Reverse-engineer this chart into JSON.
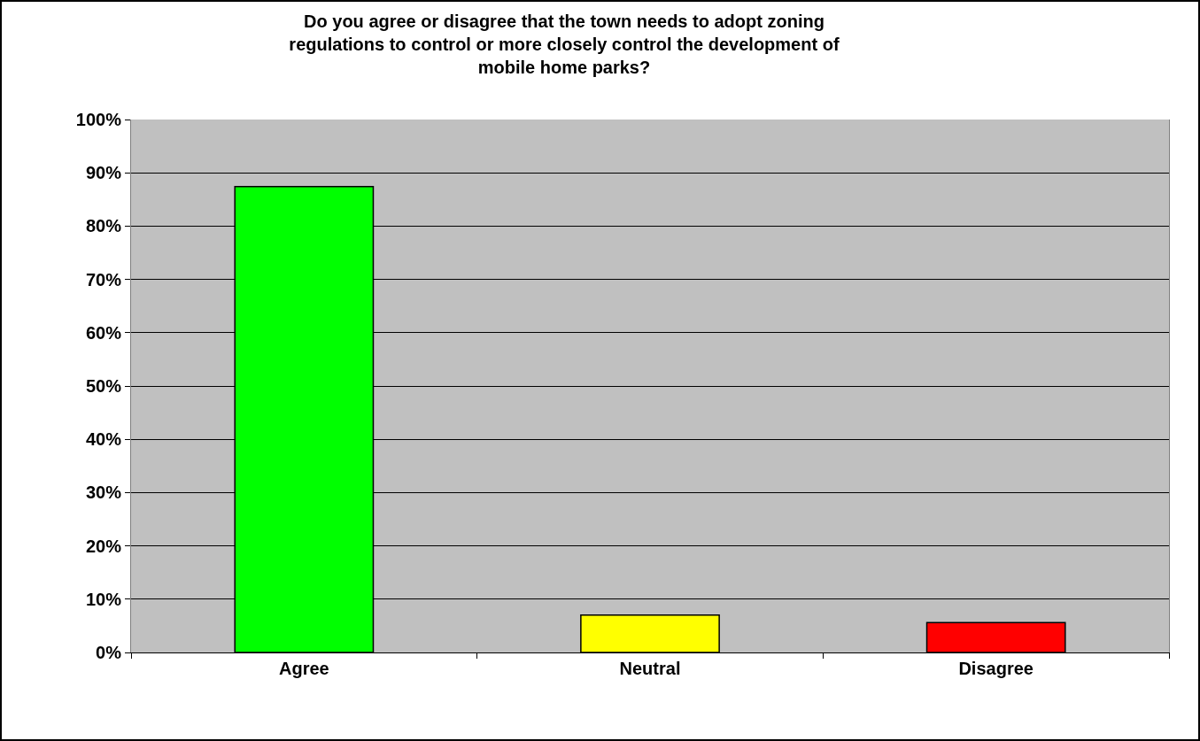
{
  "chart_data": {
    "type": "bar",
    "title": "Do you agree or disagree that the town needs to adopt zoning regulations to control or more closely control the development of mobile home parks?",
    "categories": [
      "Agree",
      "Neutral",
      "Disagree"
    ],
    "values": [
      87.4,
      7.0,
      5.6
    ],
    "colors": [
      "#00ff00",
      "#ffff00",
      "#ff0000"
    ],
    "ylim": [
      0,
      100
    ],
    "yticks": [
      {
        "value": 0,
        "label": "0%"
      },
      {
        "value": 10,
        "label": "10%"
      },
      {
        "value": 20,
        "label": "20%"
      },
      {
        "value": 30,
        "label": "30%"
      },
      {
        "value": 40,
        "label": "40%"
      },
      {
        "value": 50,
        "label": "50%"
      },
      {
        "value": 60,
        "label": "60%"
      },
      {
        "value": 70,
        "label": "70%"
      },
      {
        "value": 80,
        "label": "80%"
      },
      {
        "value": 90,
        "label": "90%"
      },
      {
        "value": 100,
        "label": "100%"
      }
    ],
    "grid": "y",
    "legend": false
  }
}
